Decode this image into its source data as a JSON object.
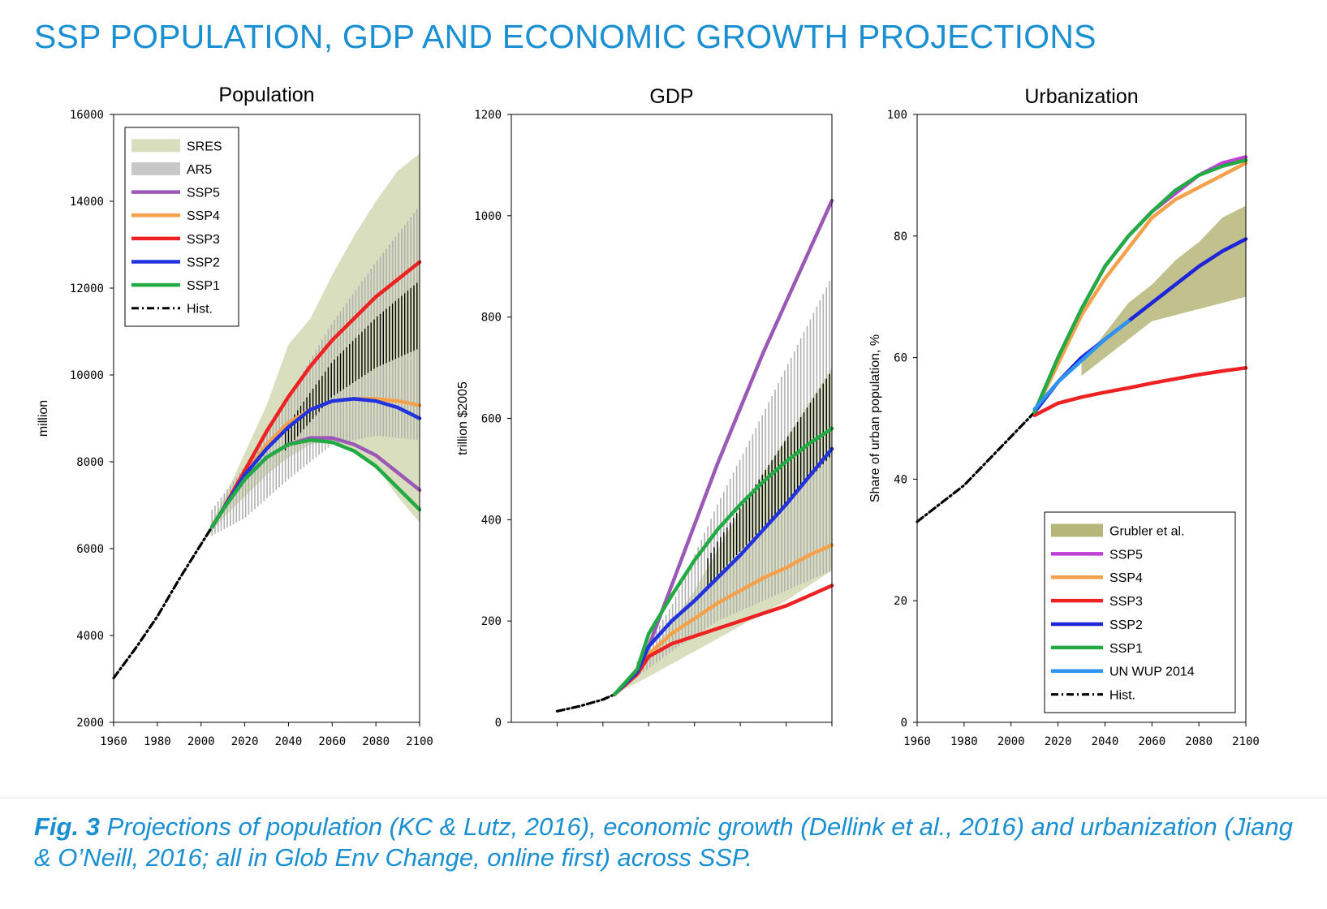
{
  "title": "SSP POPULATION, GDP AND ECONOMIC GROWTH PROJECTIONS",
  "caption": {
    "fig_label": "Fig. 3",
    "text": " Projections of population (KC & Lutz, 2016), economic growth (Dellink et al., 2016) and urbanization (Jiang & O’Neill, 2016; all in Glob Env Change, online first) across SSP."
  },
  "chart_data": [
    {
      "type": "line",
      "title": "Population",
      "ylabel": "million",
      "xlim": [
        1960,
        2100
      ],
      "ylim": [
        2000,
        16000
      ],
      "xticks": [
        1960,
        1980,
        2000,
        2020,
        2040,
        2060,
        2080,
        2100
      ],
      "yticks": [
        2000,
        4000,
        6000,
        8000,
        10000,
        12000,
        14000,
        16000
      ],
      "legend": [
        "SRES",
        "AR5",
        "SSP5",
        "SSP4",
        "SSP3",
        "SSP2",
        "SSP1",
        "Hist."
      ],
      "legend_position": "top-left",
      "colors": {
        "SRES": "#d9dfbe",
        "AR5": "#b0b0b0",
        "SSP5": "#9b59b6",
        "SSP4": "#f5a04a",
        "SSP3": "#ee2222",
        "SSP2": "#2233dd",
        "SSP1": "#22aa44",
        "Hist.": "#000000"
      },
      "bands": [
        {
          "name": "SRES",
          "x": [
            2000,
            2010,
            2020,
            2030,
            2040,
            2050,
            2060,
            2070,
            2080,
            2090,
            2100
          ],
          "upper": [
            6100,
            7100,
            8200,
            9300,
            10700,
            11300,
            12300,
            13200,
            14000,
            14700,
            15100
          ],
          "lower": [
            6100,
            6700,
            7200,
            7700,
            8100,
            8400,
            8500,
            8300,
            7900,
            7200,
            6600
          ]
        },
        {
          "name": "AR5",
          "x": [
            2005,
            2020,
            2040,
            2060,
            2080,
            2100
          ],
          "upper": [
            6900,
            7900,
            9500,
            11200,
            12600,
            13900
          ],
          "lower": [
            6300,
            6700,
            7600,
            8400,
            8600,
            8500
          ]
        }
      ],
      "series": [
        {
          "name": "Hist.",
          "x": [
            1960,
            1970,
            1980,
            1990,
            2000,
            2010
          ],
          "values": [
            3020,
            3700,
            4440,
            5300,
            6100,
            6900
          ]
        },
        {
          "name": "SSP5",
          "x": [
            2005,
            2010,
            2020,
            2030,
            2040,
            2050,
            2060,
            2070,
            2080,
            2090,
            2100
          ],
          "values": [
            6500,
            6900,
            7600,
            8100,
            8400,
            8550,
            8550,
            8400,
            8150,
            7750,
            7350
          ]
        },
        {
          "name": "SSP4",
          "x": [
            2005,
            2010,
            2020,
            2030,
            2040,
            2050,
            2060,
            2070,
            2080,
            2090,
            2100
          ],
          "values": [
            6500,
            6900,
            7700,
            8400,
            8900,
            9200,
            9400,
            9450,
            9450,
            9400,
            9300
          ]
        },
        {
          "name": "SSP3",
          "x": [
            2005,
            2010,
            2020,
            2030,
            2040,
            2050,
            2060,
            2070,
            2080,
            2090,
            2100
          ],
          "values": [
            6500,
            6900,
            7800,
            8700,
            9500,
            10200,
            10800,
            11300,
            11800,
            12200,
            12600
          ]
        },
        {
          "name": "SSP2",
          "x": [
            2005,
            2010,
            2020,
            2030,
            2040,
            2050,
            2060,
            2070,
            2080,
            2090,
            2100
          ],
          "values": [
            6500,
            6900,
            7700,
            8300,
            8800,
            9200,
            9400,
            9450,
            9400,
            9250,
            9000
          ]
        },
        {
          "name": "SSP1",
          "x": [
            2005,
            2010,
            2020,
            2030,
            2040,
            2050,
            2060,
            2070,
            2080,
            2090,
            2100
          ],
          "values": [
            6500,
            6900,
            7600,
            8100,
            8400,
            8500,
            8450,
            8250,
            7900,
            7400,
            6900
          ]
        }
      ]
    },
    {
      "type": "line",
      "title": "GDP",
      "ylabel": "trillion $2005",
      "xlim": [
        1960,
        2100
      ],
      "ylim": [
        0,
        1200
      ],
      "yticks": [
        0,
        200,
        400,
        600,
        800,
        1000,
        1200
      ],
      "series": [
        {
          "name": "Hist.",
          "x": [
            1980,
            1990,
            2000,
            2005
          ],
          "values": [
            22,
            32,
            45,
            55
          ]
        },
        {
          "name": "SSP5",
          "x": [
            2005,
            2015,
            2020,
            2030,
            2040,
            2050,
            2060,
            2070,
            2080,
            2090,
            2100
          ],
          "values": [
            55,
            100,
            150,
            270,
            390,
            510,
            620,
            730,
            830,
            930,
            1030
          ]
        },
        {
          "name": "SSP4",
          "x": [
            2005,
            2015,
            2020,
            2030,
            2040,
            2050,
            2060,
            2070,
            2080,
            2090,
            2100
          ],
          "values": [
            55,
            100,
            135,
            175,
            205,
            235,
            260,
            285,
            305,
            330,
            350
          ]
        },
        {
          "name": "SSP3",
          "x": [
            2005,
            2015,
            2020,
            2030,
            2040,
            2050,
            2060,
            2070,
            2080,
            2090,
            2100
          ],
          "values": [
            55,
            95,
            130,
            155,
            170,
            185,
            200,
            215,
            230,
            250,
            270
          ]
        },
        {
          "name": "SSP2",
          "x": [
            2005,
            2015,
            2020,
            2030,
            2040,
            2050,
            2060,
            2070,
            2080,
            2090,
            2100
          ],
          "values": [
            55,
            100,
            150,
            200,
            240,
            285,
            330,
            380,
            430,
            485,
            540
          ]
        },
        {
          "name": "SSP1",
          "x": [
            2005,
            2015,
            2020,
            2030,
            2040,
            2050,
            2060,
            2070,
            2080,
            2090,
            2100
          ],
          "values": [
            55,
            105,
            175,
            250,
            320,
            380,
            430,
            475,
            515,
            550,
            580
          ]
        }
      ],
      "bands": [
        {
          "name": "SRES",
          "x": [
            2005,
            2020,
            2040,
            2060,
            2080,
            2100
          ],
          "upper": [
            55,
            130,
            260,
            420,
            560,
            700
          ],
          "lower": [
            55,
            90,
            140,
            190,
            240,
            300
          ]
        },
        {
          "name": "AR5",
          "x": [
            2015,
            2030,
            2050,
            2070,
            2090,
            2100
          ],
          "upper": [
            120,
            230,
            430,
            610,
            790,
            880
          ],
          "lower": [
            90,
            140,
            200,
            240,
            280,
            300
          ]
        }
      ]
    },
    {
      "type": "line",
      "title": "Urbanization",
      "ylabel": "Share of urban population, %",
      "xlim": [
        1960,
        2100
      ],
      "ylim": [
        0,
        100
      ],
      "xticks": [
        1960,
        1980,
        2000,
        2020,
        2040,
        2060,
        2080,
        2100
      ],
      "yticks": [
        0,
        20,
        40,
        60,
        80,
        100
      ],
      "legend": [
        "Grubler et al.",
        "SSP5",
        "SSP4",
        "SSP3",
        "SSP2",
        "SSP1",
        "UN WUP 2014",
        "Hist."
      ],
      "legend_position": "bottom-right",
      "colors": {
        "Grubler et al.": "#b6b67a",
        "SSP5": "#c03fd6",
        "SSP4": "#f5a04a",
        "SSP3": "#ee2222",
        "SSP2": "#1e24d8",
        "SSP1": "#22aa44",
        "UN WUP 2014": "#2f94f0",
        "Hist.": "#000000"
      },
      "bands": [
        {
          "name": "Grubler et al.",
          "x": [
            2030,
            2040,
            2050,
            2060,
            2070,
            2080,
            2090,
            2100
          ],
          "upper": [
            59,
            64,
            69,
            72,
            76,
            79,
            83,
            85
          ],
          "lower": [
            57,
            60,
            63,
            66,
            67,
            68,
            69,
            70
          ]
        }
      ],
      "series": [
        {
          "name": "Hist.",
          "x": [
            1960,
            1970,
            1980,
            1990,
            2000,
            2010
          ],
          "values": [
            33,
            36,
            39,
            43,
            47,
            51
          ]
        },
        {
          "name": "SSP5",
          "x": [
            2010,
            2020,
            2030,
            2040,
            2050,
            2060,
            2070,
            2080,
            2090,
            2100
          ],
          "values": [
            51,
            60,
            68,
            75,
            80,
            84,
            87,
            90,
            92,
            93
          ]
        },
        {
          "name": "SSP4",
          "x": [
            2010,
            2020,
            2030,
            2040,
            2050,
            2060,
            2070,
            2080,
            2090,
            2100
          ],
          "values": [
            51,
            59,
            67,
            73,
            78,
            83,
            86,
            88,
            90,
            92
          ]
        },
        {
          "name": "SSP3",
          "x": [
            2010,
            2020,
            2030,
            2040,
            2050,
            2060,
            2070,
            2080,
            2090,
            2100
          ],
          "values": [
            50.5,
            52.5,
            53.5,
            54.3,
            55,
            55.8,
            56.5,
            57.2,
            57.8,
            58.3
          ]
        },
        {
          "name": "SSP2",
          "x": [
            2010,
            2020,
            2030,
            2040,
            2050,
            2060,
            2070,
            2080,
            2090,
            2100
          ],
          "values": [
            51,
            56,
            60,
            63,
            66,
            69,
            72,
            75,
            77.5,
            79.5
          ]
        },
        {
          "name": "SSP1",
          "x": [
            2010,
            2020,
            2030,
            2040,
            2050,
            2060,
            2070,
            2080,
            2090,
            2100
          ],
          "values": [
            51,
            60,
            68,
            75,
            80,
            84,
            87.5,
            90,
            91.5,
            92.5
          ]
        },
        {
          "name": "UN WUP 2014",
          "x": [
            2010,
            2020,
            2030,
            2040,
            2050
          ],
          "values": [
            51.5,
            56,
            59.5,
            63,
            66
          ]
        }
      ]
    }
  ]
}
